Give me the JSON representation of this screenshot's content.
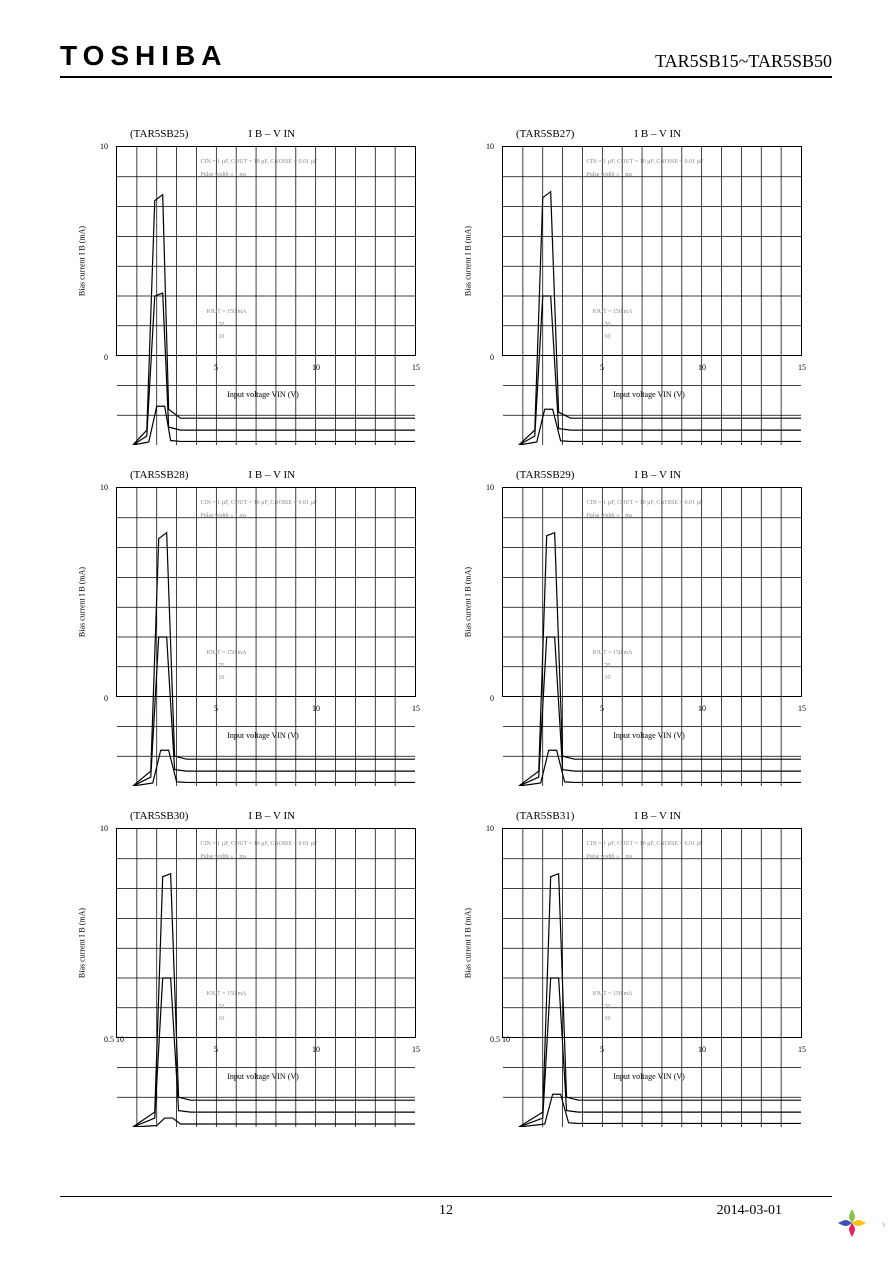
{
  "header": {
    "logo": "TOSHIBA",
    "part_range": "TAR5SB15~TAR5SB50"
  },
  "footer": {
    "page_number": "12",
    "date": "2014-03-01"
  },
  "chart_common": {
    "title_suffix": "I B – V IN",
    "ylabel": "Bias current  I B  (mA)",
    "xlabel": "Input voltage  VIN  (V)",
    "conditions_line1": "CIN = 1 µF, COUT = 10 µF, CNOISE = 0.01 µF",
    "conditions_line2": "Pulse width ≤ 1 ms",
    "curve_label_top": "IOUT = 150 mA",
    "curve_label_mid": "70",
    "curve_label_bot": "10",
    "ylim": [
      0,
      10
    ],
    "ytick_labels": [
      "0",
      "10"
    ],
    "xlim": [
      0,
      15
    ],
    "xtick_positions": [
      0,
      5,
      10,
      15
    ],
    "xtick_labels": [
      "0",
      "5",
      "10",
      "15"
    ],
    "grid_color": "#000000",
    "line_color": "#000000",
    "line_width": 1.2,
    "background_color": "#ffffff",
    "title_fontsize": 11,
    "label_fontsize": 8,
    "tick_fontsize": 8,
    "cond_fontsize": 6,
    "grid_x_divisions": 15,
    "grid_y_divisions": 10
  },
  "charts": [
    {
      "part": "(TAR5SB25)",
      "x_min_label": "0",
      "curves": [
        {
          "label": "150",
          "points": [
            [
              0.8,
              0
            ],
            [
              1.5,
              0.5
            ],
            [
              1.9,
              8.2
            ],
            [
              2.3,
              8.4
            ],
            [
              2.6,
              1.2
            ],
            [
              3.2,
              0.9
            ],
            [
              15,
              0.9
            ]
          ]
        },
        {
          "label": "70",
          "points": [
            [
              0.8,
              0
            ],
            [
              1.5,
              0.3
            ],
            [
              1.9,
              5.0
            ],
            [
              2.3,
              5.1
            ],
            [
              2.6,
              0.6
            ],
            [
              3.2,
              0.5
            ],
            [
              15,
              0.5
            ]
          ]
        },
        {
          "label": "10",
          "points": [
            [
              0.8,
              0
            ],
            [
              1.6,
              0.1
            ],
            [
              2.0,
              1.3
            ],
            [
              2.4,
              1.3
            ],
            [
              2.7,
              0.15
            ],
            [
              3.2,
              0.12
            ],
            [
              15,
              0.12
            ]
          ]
        }
      ]
    },
    {
      "part": "(TAR5SB27)",
      "x_min_label": "0",
      "curves": [
        {
          "label": "150",
          "points": [
            [
              0.8,
              0
            ],
            [
              1.6,
              0.5
            ],
            [
              2.0,
              8.3
            ],
            [
              2.4,
              8.5
            ],
            [
              2.8,
              1.1
            ],
            [
              3.4,
              0.9
            ],
            [
              15,
              0.9
            ]
          ]
        },
        {
          "label": "70",
          "points": [
            [
              0.8,
              0
            ],
            [
              1.6,
              0.3
            ],
            [
              2.0,
              5.0
            ],
            [
              2.4,
              5.0
            ],
            [
              2.8,
              0.55
            ],
            [
              3.4,
              0.5
            ],
            [
              15,
              0.5
            ]
          ]
        },
        {
          "label": "10",
          "points": [
            [
              0.8,
              0
            ],
            [
              1.7,
              0.1
            ],
            [
              2.1,
              1.2
            ],
            [
              2.5,
              1.2
            ],
            [
              2.9,
              0.14
            ],
            [
              3.4,
              0.12
            ],
            [
              15,
              0.12
            ]
          ]
        }
      ]
    },
    {
      "part": "(TAR5SB28)",
      "x_min_label": "0",
      "curves": [
        {
          "label": "150",
          "points": [
            [
              0.8,
              0
            ],
            [
              1.7,
              0.5
            ],
            [
              2.1,
              8.3
            ],
            [
              2.5,
              8.5
            ],
            [
              2.9,
              1.0
            ],
            [
              3.5,
              0.9
            ],
            [
              15,
              0.9
            ]
          ]
        },
        {
          "label": "70",
          "points": [
            [
              0.8,
              0
            ],
            [
              1.7,
              0.3
            ],
            [
              2.1,
              5.0
            ],
            [
              2.5,
              5.0
            ],
            [
              2.9,
              0.55
            ],
            [
              3.5,
              0.5
            ],
            [
              15,
              0.5
            ]
          ]
        },
        {
          "label": "10",
          "points": [
            [
              0.8,
              0
            ],
            [
              1.8,
              0.1
            ],
            [
              2.2,
              1.2
            ],
            [
              2.6,
              1.2
            ],
            [
              3.0,
              0.14
            ],
            [
              3.5,
              0.12
            ],
            [
              15,
              0.12
            ]
          ]
        }
      ]
    },
    {
      "part": "(TAR5SB29)",
      "x_min_label": "0",
      "curves": [
        {
          "label": "150",
          "points": [
            [
              0.8,
              0
            ],
            [
              1.8,
              0.5
            ],
            [
              2.2,
              8.4
            ],
            [
              2.6,
              8.5
            ],
            [
              3.0,
              1.0
            ],
            [
              3.6,
              0.9
            ],
            [
              15,
              0.9
            ]
          ]
        },
        {
          "label": "70",
          "points": [
            [
              0.8,
              0
            ],
            [
              1.8,
              0.3
            ],
            [
              2.2,
              5.0
            ],
            [
              2.6,
              5.0
            ],
            [
              3.0,
              0.55
            ],
            [
              3.6,
              0.5
            ],
            [
              15,
              0.5
            ]
          ]
        },
        {
          "label": "10",
          "points": [
            [
              0.8,
              0
            ],
            [
              1.9,
              0.1
            ],
            [
              2.3,
              1.2
            ],
            [
              2.7,
              1.2
            ],
            [
              3.1,
              0.14
            ],
            [
              3.6,
              0.12
            ],
            [
              15,
              0.12
            ]
          ]
        }
      ]
    },
    {
      "part": "(TAR5SB30)",
      "x_min_label": "0.5 10",
      "curves": [
        {
          "label": "150",
          "points": [
            [
              0.8,
              0
            ],
            [
              1.9,
              0.5
            ],
            [
              2.3,
              8.4
            ],
            [
              2.7,
              8.5
            ],
            [
              3.1,
              1.0
            ],
            [
              3.7,
              0.9
            ],
            [
              15,
              0.9
            ]
          ]
        },
        {
          "label": "70",
          "points": [
            [
              0.8,
              0
            ],
            [
              1.9,
              0.3
            ],
            [
              2.3,
              5.0
            ],
            [
              2.7,
              5.0
            ],
            [
              3.1,
              0.55
            ],
            [
              3.7,
              0.5
            ],
            [
              15,
              0.5
            ]
          ]
        },
        {
          "label": "10",
          "points": [
            [
              0.8,
              0
            ],
            [
              2.0,
              0.05
            ],
            [
              2.4,
              0.3
            ],
            [
              2.8,
              0.3
            ],
            [
              3.2,
              0.1
            ],
            [
              3.7,
              0.1
            ],
            [
              15,
              0.1
            ]
          ]
        }
      ]
    },
    {
      "part": "(TAR5SB31)",
      "x_min_label": "0.5 10",
      "curves": [
        {
          "label": "150",
          "points": [
            [
              0.8,
              0
            ],
            [
              2.0,
              0.5
            ],
            [
              2.4,
              8.4
            ],
            [
              2.8,
              8.5
            ],
            [
              3.2,
              1.0
            ],
            [
              3.8,
              0.9
            ],
            [
              15,
              0.9
            ]
          ]
        },
        {
          "label": "70",
          "points": [
            [
              0.8,
              0
            ],
            [
              2.0,
              0.3
            ],
            [
              2.4,
              5.0
            ],
            [
              2.8,
              5.0
            ],
            [
              3.2,
              0.55
            ],
            [
              3.8,
              0.5
            ],
            [
              15,
              0.5
            ]
          ]
        },
        {
          "label": "10",
          "points": [
            [
              0.8,
              0
            ],
            [
              2.1,
              0.1
            ],
            [
              2.5,
              1.1
            ],
            [
              2.9,
              1.1
            ],
            [
              3.3,
              0.14
            ],
            [
              3.8,
              0.12
            ],
            [
              15,
              0.12
            ]
          ]
        }
      ]
    }
  ]
}
